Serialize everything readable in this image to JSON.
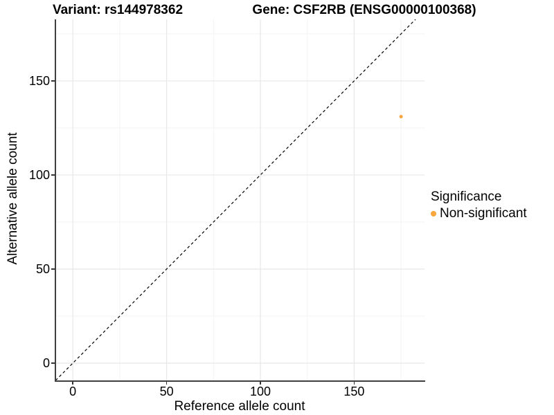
{
  "chart_data": {
    "type": "scatter",
    "title_left": "Variant: rs144978362",
    "title_right": "Gene: CSF2RB (ENSG00000100368)",
    "xlabel": "Reference allele count",
    "ylabel": "Alternative allele count",
    "x_ticks": [
      0,
      50,
      100,
      150
    ],
    "y_ticks": [
      0,
      50,
      100,
      150
    ],
    "xlim": [
      -9.3,
      187.5
    ],
    "ylim": [
      -9.2,
      182.7
    ],
    "grid": {
      "major_step": 50,
      "minor_step": 25,
      "major_color": "#e7e7e7",
      "minor_color": "#f3f3f3"
    },
    "reference_line": {
      "type": "identity",
      "style": "dashed",
      "color": "#000000"
    },
    "points": [
      {
        "x": 175,
        "y": 131,
        "series": "Non-significant",
        "color": "#F9A63E",
        "radius": 2.5
      }
    ],
    "legend": {
      "position": "right",
      "title": "Significance",
      "items": [
        {
          "label": "Non-significant",
          "color": "#F9A63E"
        }
      ]
    }
  },
  "colors": {
    "background": "#ffffff",
    "axis_line": "#3f3f3f",
    "text": "#000000",
    "point_orange": "#F9A63E"
  }
}
